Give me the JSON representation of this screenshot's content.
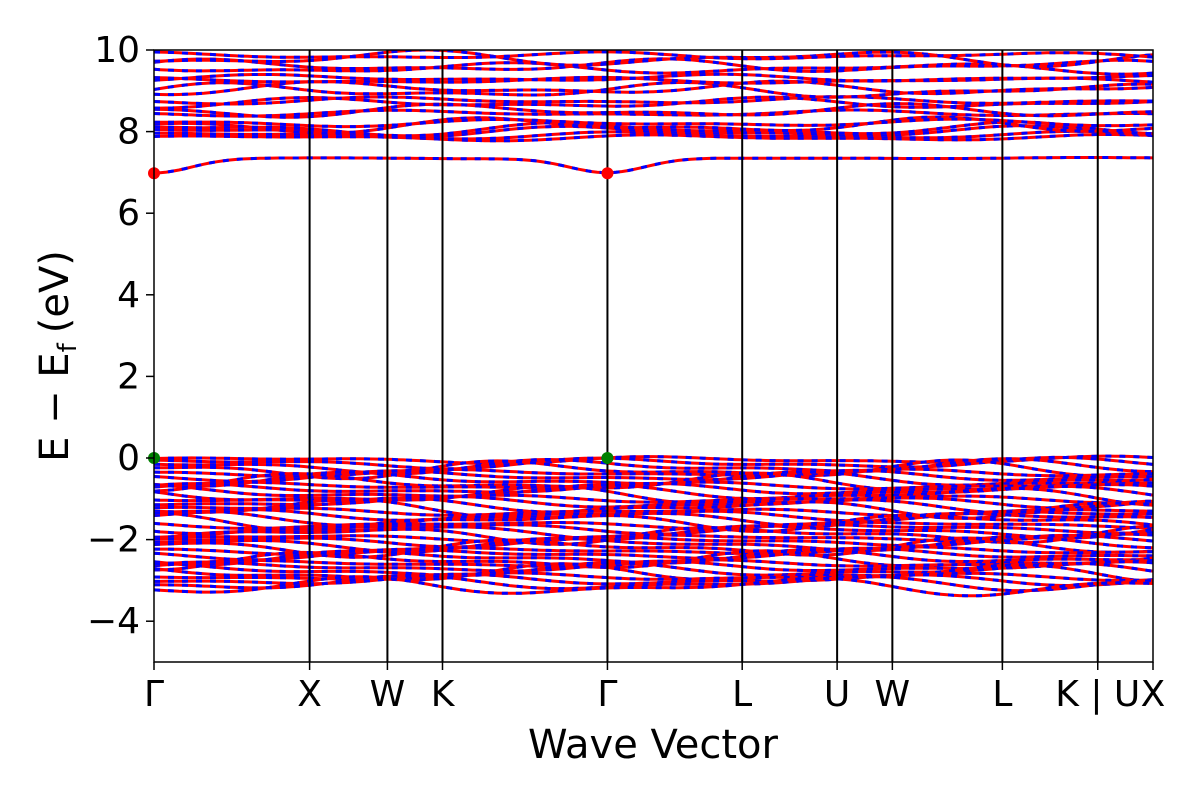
{
  "chart_data": {
    "type": "line",
    "title": "",
    "xlabel": "Wave Vector",
    "ylabel_main": "E − E",
    "ylabel_sub": "f",
    "ylabel_unit": "(eV)",
    "ylim": [
      -5,
      10
    ],
    "y_ticks": [
      -4,
      -2,
      0,
      2,
      4,
      6,
      8,
      10
    ],
    "y_tick_labels": [
      "−4",
      "−2",
      "0",
      "2",
      "4",
      "6",
      "8",
      "10"
    ],
    "kpath": [
      {
        "label": "Γ",
        "k": 0.0
      },
      {
        "label": "X",
        "k": 1.0
      },
      {
        "label": "W",
        "k": 1.5
      },
      {
        "label": "K",
        "k": 1.854
      },
      {
        "label": "Γ",
        "k": 2.914
      },
      {
        "label": "L",
        "k": 3.78
      },
      {
        "label": "U",
        "k": 4.39
      },
      {
        "label": "W",
        "k": 4.745
      },
      {
        "label": "L",
        "k": 5.452
      },
      {
        "label": "K | U",
        "k": 6.065
      },
      {
        "label": "X",
        "k": 6.42
      }
    ],
    "xlim": [
      0.0,
      6.42
    ],
    "bands": {
      "conduction_band_minimum": {
        "gamma_value": 6.98,
        "plateau_value": 7.35
      },
      "upper_conduction_levels": [
        7.85,
        8.0,
        8.15,
        8.45,
        8.7,
        9.0,
        9.25,
        9.55,
        9.8
      ],
      "valence_band_maximum": 0.0,
      "valence_band_bottom": -3.2
    },
    "series": [
      {
        "name": "",
        "color": "#ff0000",
        "style": "solid"
      },
      {
        "name": "",
        "color": "#0000ff",
        "style": "dashed"
      }
    ],
    "markers": [
      {
        "k": 0.0,
        "value": 6.98,
        "color": "#ff0000",
        "kind": "CBM"
      },
      {
        "k": 2.914,
        "value": 6.98,
        "color": "#ff0000",
        "kind": "CBM"
      },
      {
        "k": 0.0,
        "value": 0.0,
        "color": "#008000",
        "kind": "VBM"
      },
      {
        "k": 2.914,
        "value": 0.0,
        "color": "#008000",
        "kind": "VBM"
      }
    ],
    "grid": false,
    "legend": "none"
  }
}
